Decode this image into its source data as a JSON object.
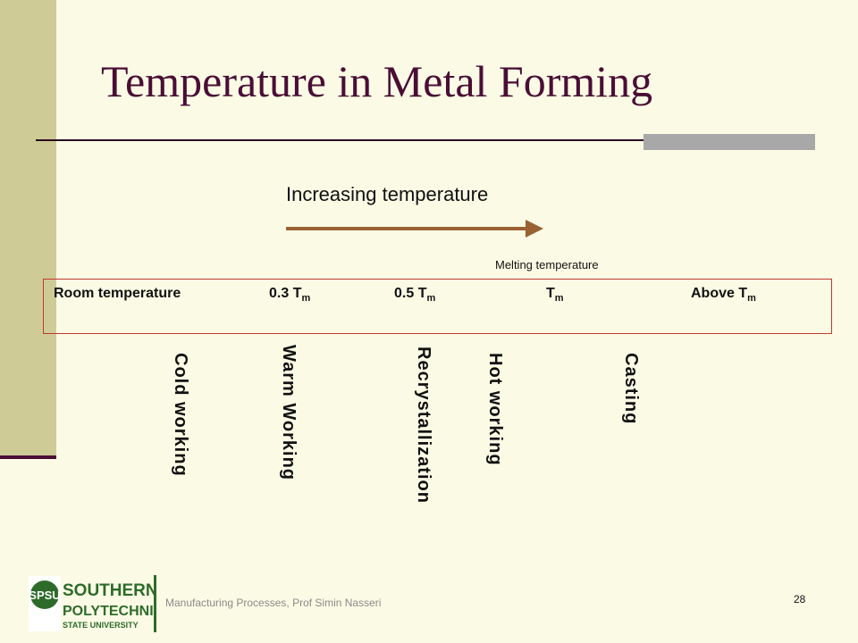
{
  "slide": {
    "title": "Temperature in Metal Forming",
    "increasing_label": "Increasing temperature",
    "melting_label": "Melting temperature",
    "ticks": {
      "room": "Room temperature",
      "t03_prefix": "0.3 T",
      "t05_prefix": "0.5 T",
      "tm_prefix": "T",
      "above_prefix": "Above T",
      "sub": "m"
    },
    "processes": {
      "cold": "Cold working",
      "warm": "Warm Working",
      "recryst": "Recrystallization",
      "hot": "Hot working",
      "casting": "Casting"
    },
    "footer": "Manufacturing Processes, Prof Simin Nasseri",
    "page_number": "28"
  },
  "logo": {
    "badge": "SPSU",
    "line1": "SOUTHERN",
    "line2": "POLYTECHNIC",
    "line3": "STATE UNIVERSITY"
  },
  "colors": {
    "background": "#fbfbe5",
    "title": "#4a0e36",
    "arrow": "#9a6233",
    "box_border": "#c0392b",
    "logo_green": "#2e6b2a"
  }
}
